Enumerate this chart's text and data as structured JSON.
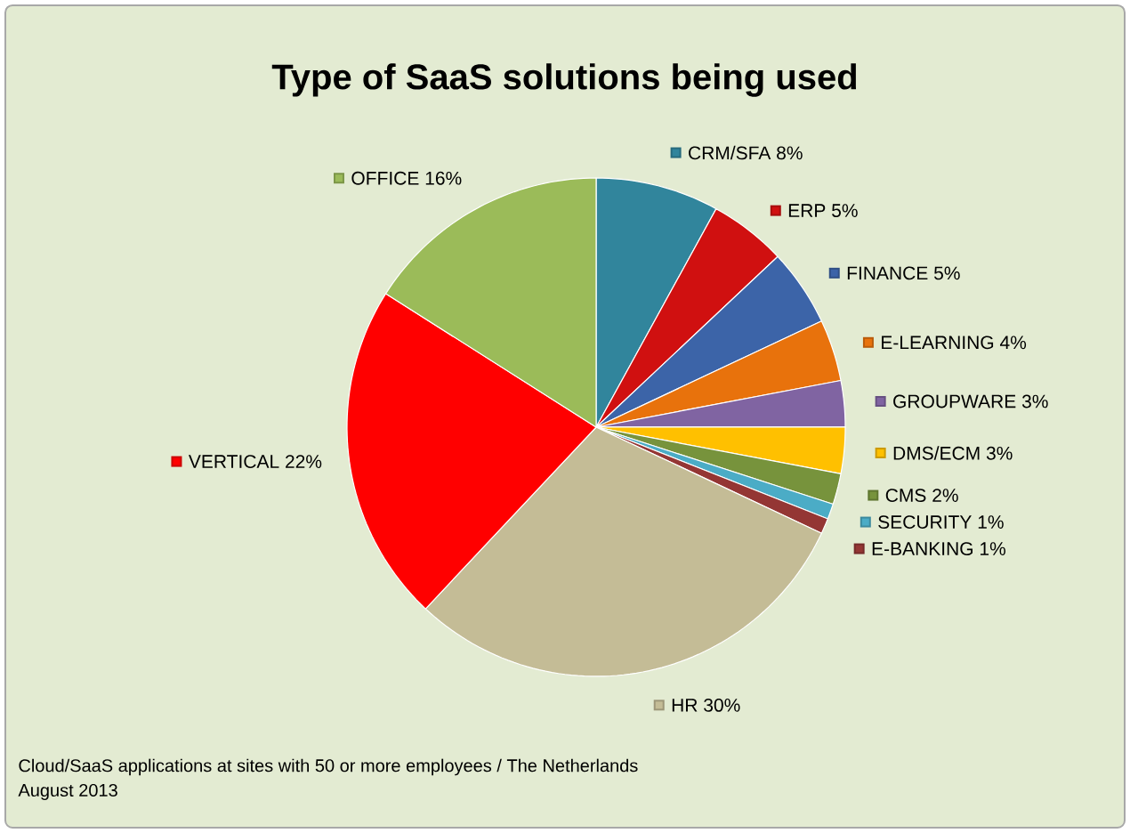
{
  "chart_data": {
    "type": "pie",
    "title": "Type of SaaS solutions being used",
    "categories": [
      "CRM/SFA",
      "ERP",
      "FINANCE",
      "E-LEARNING",
      "GROUPWARE",
      "DMS/ECM",
      "CMS",
      "SECURITY",
      "E-BANKING",
      "HR",
      "VERTICAL",
      "OFFICE"
    ],
    "values": [
      8,
      5,
      5,
      4,
      3,
      3,
      2,
      1,
      1,
      30,
      22,
      16
    ],
    "value_labels": [
      "8%",
      "5%",
      "5%",
      "4%",
      "3%",
      "3%",
      "2%",
      "1%",
      "1%",
      "30%",
      "22%",
      "16%"
    ],
    "colors": [
      "#31859c",
      "#d01010",
      "#3c64a8",
      "#e8720c",
      "#8064a2",
      "#ffc000",
      "#77933c",
      "#4bacc6",
      "#943634",
      "#c4bc96",
      "#ff0000",
      "#9bbb59"
    ],
    "legend": "right",
    "annotations": [
      "Cloud/SaaS applications at sites with 50 or more employees / The Netherlands",
      "August 2013"
    ]
  }
}
